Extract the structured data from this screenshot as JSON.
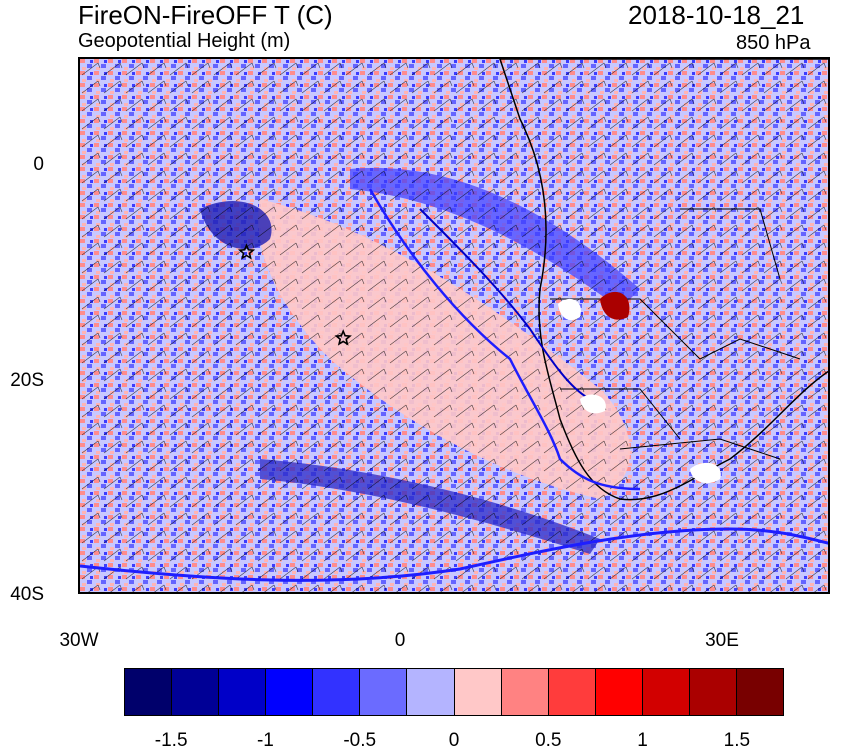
{
  "header": {
    "title": "FireON-FireOFF T (C)",
    "subtitle": "Geopotential Height (m)",
    "datetime": "2018-10-18_21",
    "level": "850 hPa"
  },
  "map": {
    "lat_labels": [
      "0",
      "20S",
      "40S"
    ],
    "lon_labels": [
      "30W",
      "0",
      "30E"
    ],
    "markers": [
      {
        "name": "star",
        "lon": -14.5,
        "lat": -8
      },
      {
        "name": "star",
        "lon": -5.5,
        "lat": -16
      }
    ]
  },
  "colorbar": {
    "colors": [
      "#00006b",
      "#000096",
      "#0000c8",
      "#0000ff",
      "#3232ff",
      "#6b6bff",
      "#b4b4ff",
      "#ffc8c8",
      "#ff8282",
      "#ff3c3c",
      "#ff0000",
      "#d20000",
      "#aa0000",
      "#780000"
    ],
    "labels": [
      "-1.5",
      "-1",
      "-0.5",
      "0",
      "0.5",
      "1",
      "1.5"
    ]
  }
}
